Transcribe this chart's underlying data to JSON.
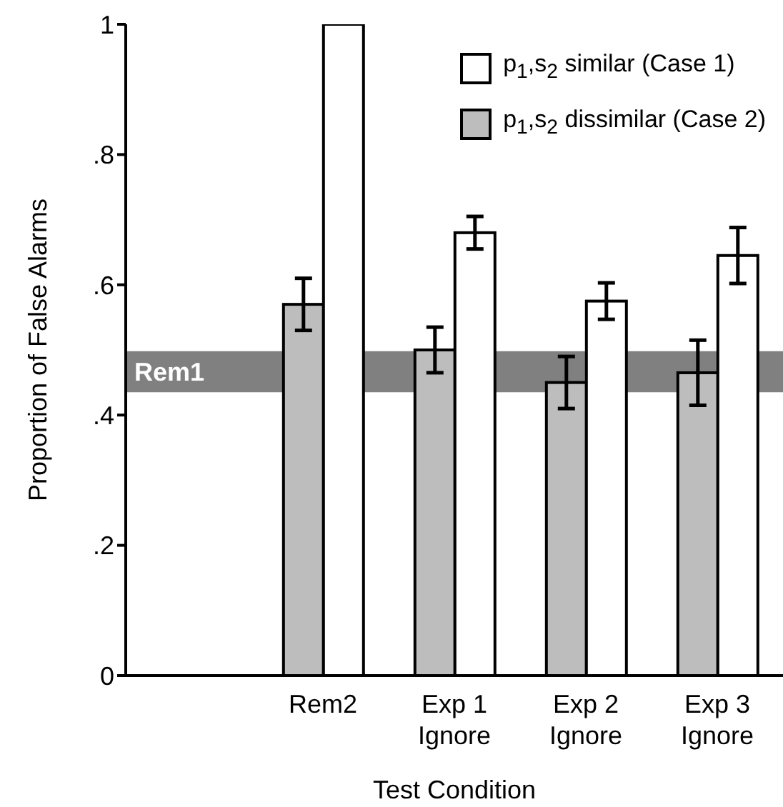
{
  "chart_data": {
    "type": "bar",
    "xlabel": "Test Condition",
    "ylabel": "Proportion of False Alarms",
    "categories": [
      null,
      "Rem2",
      "Exp 1\nIgnore",
      "Exp 2\nIgnore",
      "Exp 3\nIgnore"
    ],
    "series": [
      {
        "name": "p$_{1}$,s$_{2}$ dissimilar (Case 2)",
        "color": "#bdbdbd",
        "values": [
          null,
          0.57,
          0.5,
          0.45,
          0.465
        ],
        "errors": [
          null,
          0.04,
          0.035,
          0.04,
          0.05
        ]
      },
      {
        "name": "p$_{1}$,s$_{2}$ similar (Case 1)",
        "color": "#ffffff",
        "values": [
          null,
          1.0,
          0.68,
          0.575,
          0.645
        ],
        "errors": [
          null,
          null,
          0.025,
          0.028,
          0.043
        ]
      }
    ],
    "ylim": [
      0,
      1
    ],
    "yticks": [
      0,
      {
        "value": 0.2,
        "label": ".2"
      },
      {
        "value": 0.4,
        "label": ".4"
      },
      {
        "value": 0.6,
        "label": ".6"
      },
      {
        "value": 0.8,
        "label": ".8"
      },
      1
    ],
    "bands": [
      {
        "axis": "y",
        "from": 0.435,
        "to": 0.498,
        "label": "Rem1",
        "color": "#808080"
      }
    ],
    "grid": false,
    "legend": "top right"
  }
}
